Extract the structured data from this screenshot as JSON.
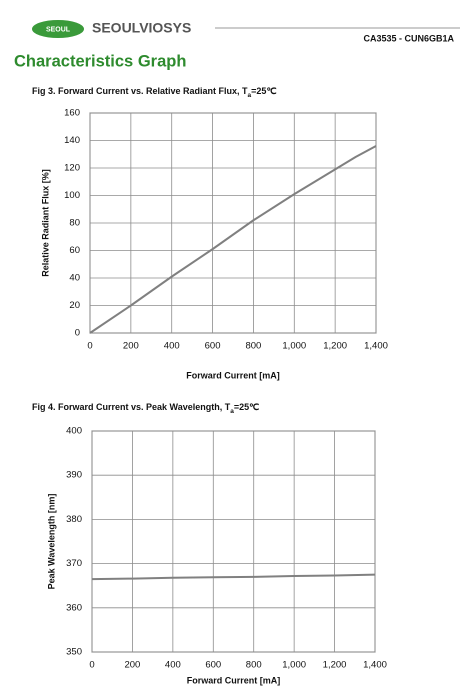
{
  "header": {
    "logo_badge": "SEOUL",
    "logo_text": "SEOULVIOSYS",
    "doc_code": "CA3535 - CUN6GB1A",
    "section_title": "Characteristics Graph"
  },
  "chart_data": [
    {
      "type": "line",
      "title": "Fig 3. Forward Current vs. Relative Radiant Flux, T",
      "title_subscript": "a",
      "title_suffix": "=25℃",
      "xlabel": "Forward Current [mA]",
      "ylabel": "Relative Radiant Flux [%]",
      "x": [
        0,
        200,
        400,
        600,
        800,
        1000,
        1100,
        1200,
        1300,
        1400
      ],
      "values": [
        0,
        20,
        41,
        61,
        82,
        101,
        110,
        119,
        128,
        136
      ],
      "color": "#808080",
      "grid": true,
      "xlim": [
        0,
        1400
      ],
      "ylim": [
        0,
        160
      ],
      "xticks": [
        0,
        200,
        400,
        600,
        800,
        {
          "value": 1000,
          "label": "1,000"
        },
        {
          "value": 1200,
          "label": "1,200"
        },
        {
          "value": 1400,
          "label": "1,400"
        }
      ],
      "yticks": [
        0,
        20,
        40,
        60,
        80,
        100,
        120,
        140,
        160
      ]
    },
    {
      "type": "line",
      "title": "Fig 4. Forward Current vs. Peak Wavelength, T",
      "title_subscript": "a",
      "title_suffix": "=25℃",
      "xlabel": "Forward Current [mA]",
      "ylabel": "Peak Wavelength [nm]",
      "x": [
        0,
        200,
        400,
        600,
        800,
        1000,
        1200,
        1400
      ],
      "values": [
        366.5,
        366.6,
        366.8,
        366.9,
        367.0,
        367.2,
        367.3,
        367.5
      ],
      "color": "#808080",
      "grid": true,
      "xlim": [
        0,
        1400
      ],
      "ylim": [
        350,
        400
      ],
      "xticks": [
        0,
        200,
        400,
        600,
        800,
        {
          "value": 1000,
          "label": "1,000"
        },
        {
          "value": 1200,
          "label": "1,200"
        },
        {
          "value": 1400,
          "label": "1,400"
        }
      ],
      "yticks": [
        350,
        360,
        370,
        380,
        390,
        400
      ]
    }
  ]
}
